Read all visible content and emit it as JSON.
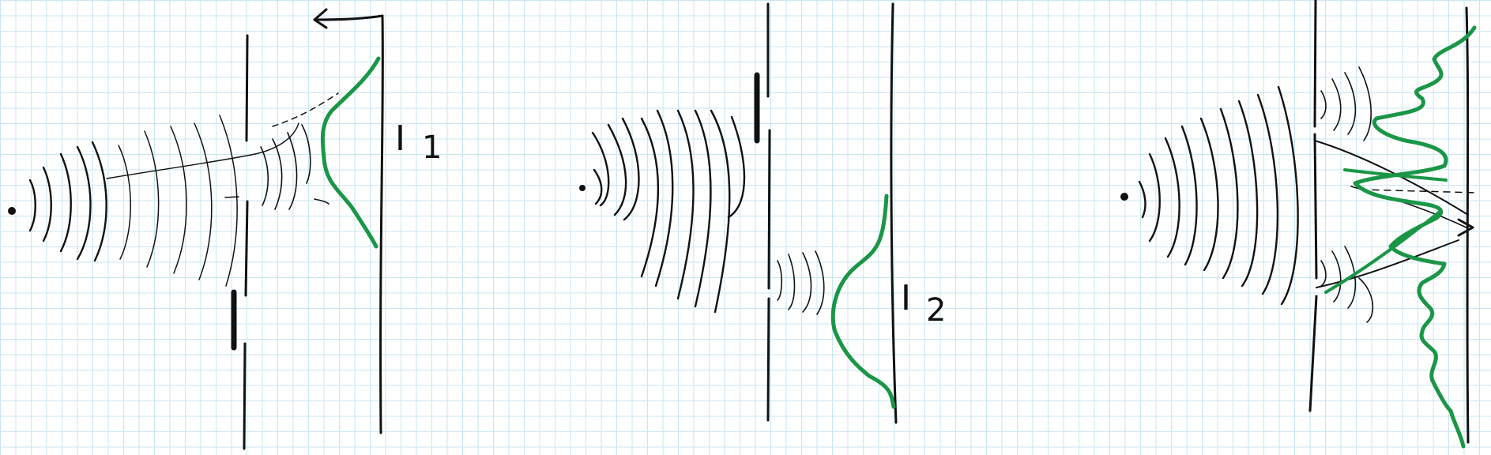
{
  "panels": [
    {
      "id": "single-slit-upper",
      "intensity_label": "I",
      "intensity_subscript": "1"
    },
    {
      "id": "single-slit-lower",
      "intensity_label": "I",
      "intensity_subscript": "2"
    },
    {
      "id": "double-slit"
    }
  ],
  "colors": {
    "ink": "#111111",
    "curve": "#1a9646",
    "grid": "#c9e6f2",
    "paper": "#ffffff"
  }
}
